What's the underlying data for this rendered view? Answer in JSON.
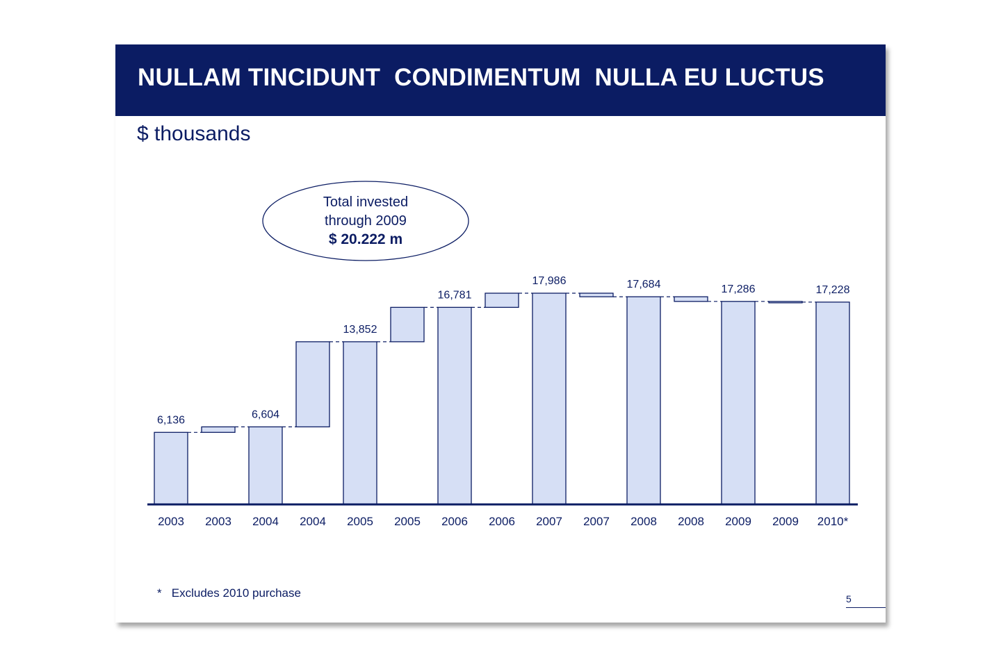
{
  "slide": {
    "title": "NULLAM TINCIDUNT  CONDIMENTUM  NULLA EU LUCTUS",
    "subtitle": "$ thousands",
    "footnote": "*   Excludes 2010 purchase",
    "page_number": "5"
  },
  "callout": {
    "line1": "Total invested",
    "line2": "through 2009",
    "line3": "$ 20.222 m"
  },
  "colors": {
    "header": "#0b1c63",
    "bar_fill": "#d6dff5",
    "bar_stroke": "#0b1c63",
    "text": "#0b1c63"
  },
  "chart_data": {
    "type": "bar",
    "subtype": "waterfall",
    "categories": [
      "2003",
      "2003",
      "2004",
      "2004",
      "2005",
      "2005",
      "2006",
      "2006",
      "2007",
      "2007",
      "2008",
      "2008",
      "2009",
      "2009",
      "2010*"
    ],
    "bars": [
      {
        "kind": "total",
        "start": 0,
        "end": 6136,
        "label": "6,136"
      },
      {
        "kind": "delta",
        "start": 6136,
        "end": 6604,
        "label": ""
      },
      {
        "kind": "total",
        "start": 0,
        "end": 6604,
        "label": "6,604"
      },
      {
        "kind": "delta",
        "start": 6604,
        "end": 13852,
        "label": ""
      },
      {
        "kind": "total",
        "start": 0,
        "end": 13852,
        "label": "13,852"
      },
      {
        "kind": "delta",
        "start": 13852,
        "end": 16781,
        "label": ""
      },
      {
        "kind": "total",
        "start": 0,
        "end": 16781,
        "label": "16,781"
      },
      {
        "kind": "delta",
        "start": 16781,
        "end": 17986,
        "label": ""
      },
      {
        "kind": "total",
        "start": 0,
        "end": 17986,
        "label": "17,986"
      },
      {
        "kind": "delta",
        "start": 17986,
        "end": 17684,
        "label": ""
      },
      {
        "kind": "total",
        "start": 0,
        "end": 17684,
        "label": "17,684"
      },
      {
        "kind": "delta",
        "start": 17684,
        "end": 17286,
        "label": ""
      },
      {
        "kind": "total",
        "start": 0,
        "end": 17286,
        "label": "17,286"
      },
      {
        "kind": "delta",
        "start": 17286,
        "end": 17228,
        "label": ""
      },
      {
        "kind": "total",
        "start": 0,
        "end": 17228,
        "label": "17,228"
      }
    ],
    "ylim": [
      0,
      17986
    ],
    "grid": false,
    "legend": "none"
  }
}
